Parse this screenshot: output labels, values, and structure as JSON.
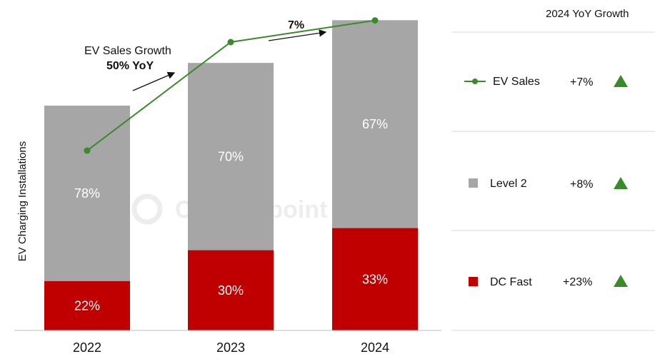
{
  "chart_data": {
    "type": "bar",
    "stacked": true,
    "categories": [
      "2022",
      "2023",
      "2024"
    ],
    "ylabel": "EV Charging Installations",
    "series": [
      {
        "name": "DC Fast",
        "labels": [
          "22%",
          "30%",
          "33%"
        ],
        "share": [
          22,
          30,
          33
        ],
        "color": "#c00000"
      },
      {
        "name": "Level 2",
        "labels": [
          "78%",
          "70%",
          "67%"
        ],
        "share": [
          78,
          70,
          67
        ],
        "color": "#a6a6a6"
      }
    ],
    "bar_totals_relative": [
      1.0,
      1.19,
      1.38
    ],
    "line": {
      "name": "EV Sales",
      "values_relative": [
        1.0,
        1.5,
        1.6
      ],
      "color": "#3a8a2a"
    },
    "annotations": {
      "growth_2023_line1": "EV Sales Growth",
      "growth_2023_line2": "50% YoY",
      "growth_2024": "7%"
    },
    "legend": {
      "header": "2024 YoY Growth",
      "items": [
        {
          "name": "EV Sales",
          "growth": "+7%",
          "marker": "line-dot",
          "trend_icon": "triangle-up-icon"
        },
        {
          "name": "Level 2",
          "growth": "+8%",
          "marker": "gray-square",
          "trend_icon": "triangle-up-icon"
        },
        {
          "name": "DC Fast",
          "growth": "+23%",
          "marker": "red-square",
          "trend_icon": "triangle-up-icon"
        }
      ],
      "trend_color": "#3a8a2a"
    },
    "watermark": "Counterpoint"
  }
}
